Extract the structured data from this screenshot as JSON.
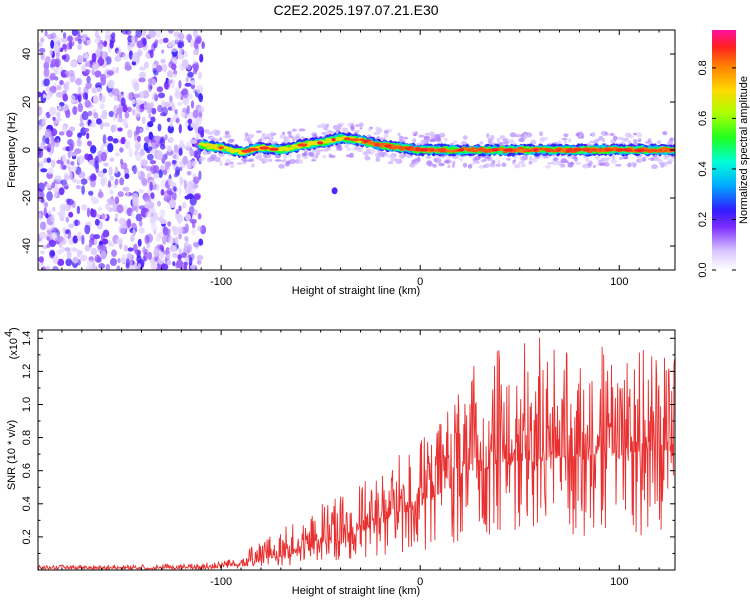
{
  "title": "C2E2.2025.197.07.21.E30",
  "chart_data": [
    {
      "type": "heatmap",
      "xlabel": "Height of straight line (km)",
      "ylabel": "Frequency (Hz)",
      "xlim": [
        -192,
        128
      ],
      "ylim": [
        -50,
        50
      ],
      "xticks": [
        -100,
        0,
        100
      ],
      "yticks": [
        -40,
        -20,
        0,
        20,
        40
      ],
      "colorbar": {
        "label": "Normalized spectral amplitude",
        "range": [
          0.0,
          0.95
        ],
        "ticks": [
          0.0,
          0.2,
          0.4,
          0.6,
          0.8
        ],
        "tick_labels": [
          "0.0",
          "0.2",
          "0.4",
          "0.6",
          "0.8"
        ]
      },
      "noise_region": {
        "x": [
          -192,
          -110
        ],
        "y": [
          -50,
          50
        ]
      },
      "signal_ridge": [
        {
          "x": -110,
          "y": 2,
          "a": 0.45
        },
        {
          "x": -100,
          "y": 1,
          "a": 0.5
        },
        {
          "x": -90,
          "y": -1,
          "a": 0.55
        },
        {
          "x": -80,
          "y": 1,
          "a": 0.6
        },
        {
          "x": -70,
          "y": 0,
          "a": 0.65
        },
        {
          "x": -60,
          "y": 2,
          "a": 0.7
        },
        {
          "x": -50,
          "y": 3,
          "a": 0.6
        },
        {
          "x": -40,
          "y": 5,
          "a": 0.75
        },
        {
          "x": -30,
          "y": 4,
          "a": 0.8
        },
        {
          "x": -20,
          "y": 2,
          "a": 0.85
        },
        {
          "x": -10,
          "y": 1,
          "a": 0.85
        },
        {
          "x": 0,
          "y": 0,
          "a": 0.9
        },
        {
          "x": 20,
          "y": 0,
          "a": 0.95
        },
        {
          "x": 40,
          "y": 0,
          "a": 0.95
        },
        {
          "x": 60,
          "y": 0,
          "a": 0.9
        },
        {
          "x": 80,
          "y": 0,
          "a": 0.95
        },
        {
          "x": 100,
          "y": 0,
          "a": 0.9
        },
        {
          "x": 128,
          "y": 0,
          "a": 0.8
        }
      ]
    },
    {
      "type": "line",
      "xlabel": "Height of straight line (km)",
      "ylabel": "SNR (10 * v/v)",
      "yscale_label": "(x10",
      "yscale_exp": "4",
      "xlim": [
        -192,
        128
      ],
      "ylim": [
        0,
        1.45
      ],
      "xticks": [
        -100,
        0,
        100
      ],
      "yticks": [
        0.2,
        0.4,
        0.6,
        0.8,
        1.0,
        1.2,
        1.4
      ],
      "ytick_labels": [
        "0.2",
        "0.4",
        "0.6",
        "0.8",
        "1.0",
        "1.2",
        "1.4"
      ],
      "color": "#e83030",
      "envelope": {
        "x": [
          -192,
          -150,
          -110,
          -90,
          -80,
          -70,
          -60,
          -50,
          -40,
          -30,
          -20,
          -10,
          0,
          10,
          20,
          30,
          40,
          50,
          60,
          70,
          80,
          90,
          100,
          110,
          128
        ],
        "base": [
          0.01,
          0.01,
          0.01,
          0.03,
          0.05,
          0.08,
          0.1,
          0.14,
          0.18,
          0.22,
          0.28,
          0.32,
          0.38,
          0.45,
          0.55,
          0.6,
          0.62,
          0.66,
          0.65,
          0.68,
          0.66,
          0.7,
          0.68,
          0.7,
          0.72
        ],
        "peak": [
          0.03,
          0.03,
          0.04,
          0.1,
          0.18,
          0.25,
          0.3,
          0.4,
          0.45,
          0.52,
          0.6,
          0.7,
          0.8,
          0.9,
          1.15,
          1.3,
          1.35,
          1.4,
          1.45,
          1.35,
          1.3,
          1.4,
          1.35,
          1.38,
          1.3
        ]
      }
    }
  ]
}
